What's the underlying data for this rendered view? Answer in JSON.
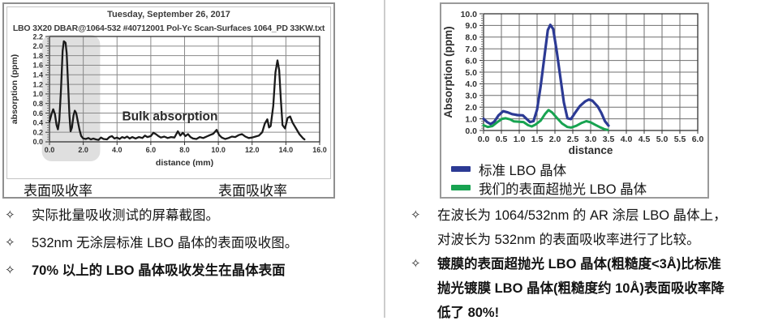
{
  "left": {
    "screenshot": {
      "title": "Tuesday, September 26, 2017",
      "subtitle": "LBO 3X20 DBAR@1064-532 #40712001 Pol-Yc Scan-Surfaces 1064_PD 33KW.txt"
    },
    "surface_label_left": "表面吸收率",
    "surface_label_right": "表面吸收率",
    "bullet_marker": "✧",
    "bullets": [
      {
        "text": "实际批量吸收测试的屏幕截图。",
        "bold": false
      },
      {
        "text": "532nm 无涂层标准 LBO 晶体的表面吸收图。",
        "bold": false
      },
      {
        "text": "70% 以上的 LBO 晶体吸收发生在晶体表面",
        "bold": true
      }
    ]
  },
  "right": {
    "bullet_marker": "✧",
    "bullets": [
      {
        "text": "在波长为 1064/532nm 的 AR 涂层 LBO 晶体上，\n对波长为 532nm 的表面吸收率进行了比较。",
        "bold": false
      },
      {
        "text": "镀膜的表面超抛光 LBO 晶体(粗糙度<3Å)比标准\n抛光镀膜 LBO 晶体(粗糙度约 10Å)表面吸收率降\n低了 80%!",
        "bold": true
      }
    ]
  },
  "chart_data": [
    {
      "type": "line",
      "title": "Tuesday, September 26, 2017",
      "subtitle": "LBO 3X20 DBAR@1064-532 #40712001 Pol-Yc Scan-Surfaces 1064_PD 33KW.txt",
      "xlabel": "distance (mm)",
      "ylabel": "absorption (ppm)",
      "xlim": [
        0,
        16
      ],
      "ylim": [
        0,
        2.2
      ],
      "xtick_step": 2.0,
      "ytick_step": 0.2,
      "grid": true,
      "annotation": {
        "text": "Bulk absorption",
        "x": 4.3,
        "y": 0.45
      },
      "shaded_region": {
        "x0": -0.45,
        "x1": 3.0,
        "color": "#dcdcdc",
        "meaning": "surface absorption zone"
      },
      "series": [
        {
          "name": "absorption",
          "color": "#1a1a1a",
          "width": 2.3,
          "points": [
            [
              0,
              0.42
            ],
            [
              0.12,
              0.58
            ],
            [
              0.22,
              0.68
            ],
            [
              0.32,
              0.58
            ],
            [
              0.42,
              0.35
            ],
            [
              0.5,
              0.26
            ],
            [
              0.58,
              0.45
            ],
            [
              0.68,
              1.1
            ],
            [
              0.78,
              1.9
            ],
            [
              0.85,
              2.1
            ],
            [
              0.95,
              2.07
            ],
            [
              1.02,
              1.85
            ],
            [
              1.1,
              1.2
            ],
            [
              1.18,
              0.55
            ],
            [
              1.25,
              0.22
            ],
            [
              1.33,
              0.3
            ],
            [
              1.42,
              0.55
            ],
            [
              1.5,
              0.65
            ],
            [
              1.58,
              0.6
            ],
            [
              1.68,
              0.42
            ],
            [
              1.78,
              0.25
            ],
            [
              1.88,
              0.12
            ],
            [
              2.0,
              0.07
            ],
            [
              2.15,
              0.06
            ],
            [
              2.3,
              0.08
            ],
            [
              2.45,
              0.05
            ],
            [
              2.6,
              0.07
            ],
            [
              2.75,
              0.05
            ],
            [
              2.9,
              0.04
            ],
            [
              3.05,
              0.09
            ],
            [
              3.2,
              0.06
            ],
            [
              3.4,
              0.05
            ],
            [
              3.55,
              0.1
            ],
            [
              3.7,
              0.12
            ],
            [
              3.85,
              0.07
            ],
            [
              4.0,
              0.09
            ],
            [
              4.15,
              0.06
            ],
            [
              4.3,
              0.1
            ],
            [
              4.45,
              0.08
            ],
            [
              4.6,
              0.11
            ],
            [
              4.75,
              0.07
            ],
            [
              4.9,
              0.1
            ],
            [
              5.1,
              0.07
            ],
            [
              5.3,
              0.1
            ],
            [
              5.5,
              0.08
            ],
            [
              5.65,
              0.13
            ],
            [
              5.8,
              0.1
            ],
            [
              6.0,
              0.12
            ],
            [
              6.15,
              0.19
            ],
            [
              6.3,
              0.16
            ],
            [
              6.45,
              0.12
            ],
            [
              6.6,
              0.09
            ],
            [
              6.8,
              0.11
            ],
            [
              7.0,
              0.08
            ],
            [
              7.2,
              0.1
            ],
            [
              7.4,
              0.09
            ],
            [
              7.6,
              0.22
            ],
            [
              7.75,
              0.13
            ],
            [
              7.9,
              0.19
            ],
            [
              8.05,
              0.12
            ],
            [
              8.2,
              0.16
            ],
            [
              8.35,
              0.1
            ],
            [
              8.5,
              0.07
            ],
            [
              8.7,
              0.06
            ],
            [
              8.9,
              0.1
            ],
            [
              9.1,
              0.08
            ],
            [
              9.3,
              0.11
            ],
            [
              9.5,
              0.14
            ],
            [
              9.7,
              0.17
            ],
            [
              9.9,
              0.25
            ],
            [
              10.05,
              0.14
            ],
            [
              10.2,
              0.09
            ],
            [
              10.4,
              0.06
            ],
            [
              10.6,
              0.08
            ],
            [
              10.8,
              0.11
            ],
            [
              11.0,
              0.1
            ],
            [
              11.2,
              0.14
            ],
            [
              11.4,
              0.16
            ],
            [
              11.6,
              0.11
            ],
            [
              11.8,
              0.08
            ],
            [
              12.0,
              0.09
            ],
            [
              12.2,
              0.11
            ],
            [
              12.4,
              0.13
            ],
            [
              12.6,
              0.2
            ],
            [
              12.75,
              0.38
            ],
            [
              12.9,
              0.47
            ],
            [
              13.0,
              0.3
            ],
            [
              13.1,
              0.33
            ],
            [
              13.25,
              0.75
            ],
            [
              13.38,
              1.45
            ],
            [
              13.5,
              1.7
            ],
            [
              13.6,
              1.5
            ],
            [
              13.7,
              0.9
            ],
            [
              13.8,
              0.35
            ],
            [
              13.95,
              0.28
            ],
            [
              14.1,
              0.5
            ],
            [
              14.25,
              0.53
            ],
            [
              14.4,
              0.4
            ],
            [
              14.6,
              0.28
            ],
            [
              14.8,
              0.16
            ],
            [
              15.0,
              0.08
            ],
            [
              15.1,
              0.05
            ]
          ]
        }
      ]
    },
    {
      "type": "line",
      "title": "",
      "xlabel": "distance",
      "ylabel": "Absorption (ppm)",
      "xlim": [
        0,
        6
      ],
      "ylim": [
        0,
        10
      ],
      "xtick_step": 0.5,
      "ytick_step": 1.0,
      "grid": true,
      "legend_position": "bottom-left",
      "series": [
        {
          "name": "标准 LBO 晶体",
          "color": "#2c3a94",
          "width": 3.2,
          "points": [
            [
              0,
              1.0
            ],
            [
              0.1,
              0.72
            ],
            [
              0.2,
              0.55
            ],
            [
              0.3,
              0.75
            ],
            [
              0.42,
              1.3
            ],
            [
              0.55,
              1.65
            ],
            [
              0.68,
              1.55
            ],
            [
              0.8,
              1.4
            ],
            [
              0.95,
              1.32
            ],
            [
              1.1,
              1.3
            ],
            [
              1.22,
              0.95
            ],
            [
              1.3,
              0.72
            ],
            [
              1.4,
              0.8
            ],
            [
              1.5,
              1.8
            ],
            [
              1.6,
              3.8
            ],
            [
              1.7,
              6.2
            ],
            [
              1.8,
              8.6
            ],
            [
              1.87,
              9.05
            ],
            [
              1.95,
              8.7
            ],
            [
              2.05,
              6.8
            ],
            [
              2.15,
              4.6
            ],
            [
              2.25,
              2.4
            ],
            [
              2.35,
              1.05
            ],
            [
              2.45,
              0.98
            ],
            [
              2.55,
              1.45
            ],
            [
              2.7,
              2.1
            ],
            [
              2.85,
              2.5
            ],
            [
              2.95,
              2.65
            ],
            [
              3.05,
              2.55
            ],
            [
              3.2,
              2.05
            ],
            [
              3.3,
              1.5
            ],
            [
              3.4,
              0.8
            ],
            [
              3.5,
              0.42
            ]
          ]
        },
        {
          "name": "我们的表面超抛光 LBO 晶体",
          "color": "#18a351",
          "width": 3.0,
          "points": [
            [
              0,
              0.45
            ],
            [
              0.12,
              0.3
            ],
            [
              0.25,
              0.38
            ],
            [
              0.4,
              0.75
            ],
            [
              0.52,
              1.0
            ],
            [
              0.62,
              1.05
            ],
            [
              0.75,
              0.95
            ],
            [
              0.85,
              0.78
            ],
            [
              1.0,
              0.75
            ],
            [
              1.12,
              0.72
            ],
            [
              1.25,
              0.45
            ],
            [
              1.35,
              0.35
            ],
            [
              1.45,
              0.5
            ],
            [
              1.6,
              0.85
            ],
            [
              1.72,
              1.4
            ],
            [
              1.82,
              1.75
            ],
            [
              1.92,
              1.55
            ],
            [
              2.05,
              1.1
            ],
            [
              2.2,
              0.6
            ],
            [
              2.35,
              0.3
            ],
            [
              2.45,
              0.25
            ],
            [
              2.6,
              0.4
            ],
            [
              2.75,
              0.65
            ],
            [
              2.88,
              0.8
            ],
            [
              3.0,
              0.7
            ],
            [
              3.12,
              0.5
            ],
            [
              3.25,
              0.3
            ],
            [
              3.38,
              0.12
            ],
            [
              3.48,
              0.05
            ]
          ]
        }
      ]
    }
  ],
  "colors": {
    "divider": "#cccccc",
    "grid": "#7a7a7a",
    "shade": "#dcdcdc",
    "standard_series": "#2c3a94",
    "superpolished_series": "#18a351"
  }
}
